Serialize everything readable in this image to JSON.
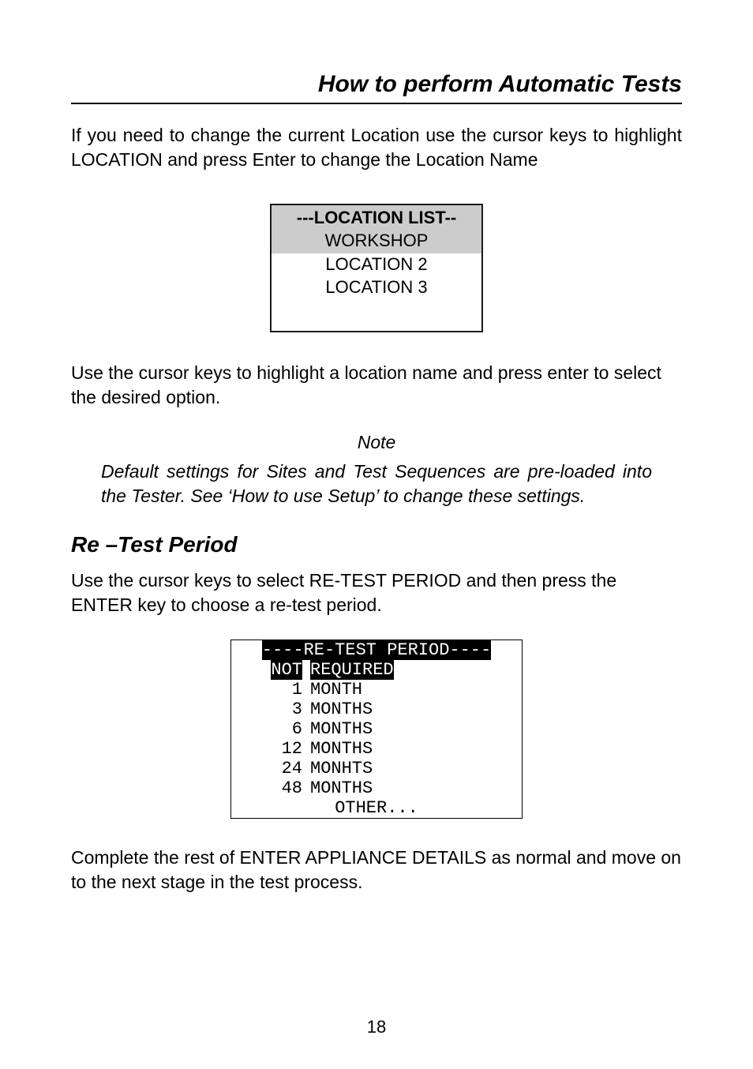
{
  "header": {
    "title": "How to perform Automatic Tests"
  },
  "para1": "If you need to change the current Location use the cursor keys to highlight LOCATION and press Enter to change the Location Name",
  "location_box": {
    "title": "---LOCATION LIST--",
    "highlighted": "WORKSHOP",
    "items": [
      "LOCATION 2",
      "LOCATION 3"
    ]
  },
  "para2": "Use the cursor keys to highlight a location name and press enter to select the desired option.",
  "note": {
    "label": "Note",
    "body": "Default settings for Sites and Test Sequences are pre-loaded into the Tester. See ‘How to use Setup’ to change these settings."
  },
  "section_heading": "Re –Test Period",
  "para3": "Use the cursor keys to select RE-TEST PERIOD and then press the ENTER key to choose a re-test period.",
  "retest_box": {
    "title": "----RE-TEST PERIOD----",
    "rows": [
      {
        "left": "NOT",
        "right": "REQUIRED",
        "selected": true
      },
      {
        "left": "1",
        "right": "MONTH",
        "selected": false
      },
      {
        "left": "3",
        "right": "MONTHS",
        "selected": false
      },
      {
        "left": "6",
        "right": "MONTHS",
        "selected": false
      },
      {
        "left": "12",
        "right": "MONTHS",
        "selected": false
      },
      {
        "left": "24",
        "right": "MONHTS",
        "selected": false
      },
      {
        "left": "48",
        "right": "MONTHS",
        "selected": false
      }
    ],
    "other_row": "OTHER..."
  },
  "para4": "Complete the rest of ENTER APPLIANCE DETAILS as normal and move on to the next stage in the test process.",
  "page_number": "18"
}
